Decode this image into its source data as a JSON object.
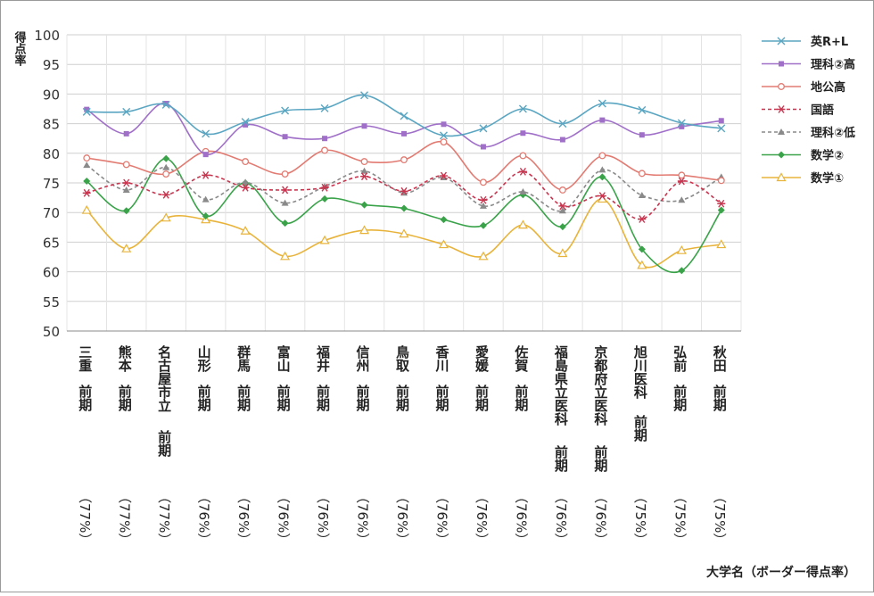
{
  "chart_data": {
    "type": "line",
    "ylabel": "得点率",
    "xlabel": "大学名（ボーダー得点率）",
    "ylim": [
      50,
      100
    ],
    "yticks": [
      50,
      55,
      60,
      65,
      70,
      75,
      80,
      85,
      90,
      95,
      100
    ],
    "grid": true,
    "legend_position": "right",
    "categories": [
      {
        "name": "三重",
        "sub": "前期",
        "pct": "（77%）"
      },
      {
        "name": "熊本",
        "sub": "前期",
        "pct": "（77%）"
      },
      {
        "name": "名古屋市立",
        "sub": "前期",
        "pct": "（77%）"
      },
      {
        "name": "山形",
        "sub": "前期",
        "pct": "（76%）"
      },
      {
        "name": "群馬",
        "sub": "前期",
        "pct": "（76%）"
      },
      {
        "name": "富山",
        "sub": "前期",
        "pct": "（76%）"
      },
      {
        "name": "福井",
        "sub": "前期",
        "pct": "（76%）"
      },
      {
        "name": "信州",
        "sub": "前期",
        "pct": "（76%）"
      },
      {
        "name": "鳥取",
        "sub": "前期",
        "pct": "（76%）"
      },
      {
        "name": "香川",
        "sub": "前期",
        "pct": "（76%）"
      },
      {
        "name": "愛媛",
        "sub": "前期",
        "pct": "（76%）"
      },
      {
        "name": "佐賀",
        "sub": "前期",
        "pct": "（76%）"
      },
      {
        "name": "福島県立医科",
        "sub": "前期",
        "pct": "（76%）"
      },
      {
        "name": "京都府立医科",
        "sub": "前期",
        "pct": "（76%）"
      },
      {
        "name": "旭川医科",
        "sub": "前期",
        "pct": "（75%）"
      },
      {
        "name": "弘前",
        "sub": "前期",
        "pct": "（75%）"
      },
      {
        "name": "秋田",
        "sub": "前期",
        "pct": "（75%）"
      }
    ],
    "series": [
      {
        "name": "英R+L",
        "color": "#5aa6c2",
        "marker": "x",
        "dash": false,
        "values": [
          87.0,
          87.0,
          88.2,
          83.3,
          85.3,
          87.2,
          87.6,
          89.8,
          86.3,
          83.0,
          84.2,
          87.5,
          85.0,
          88.4,
          87.3,
          85.1,
          84.2
        ]
      },
      {
        "name": "理科②高",
        "color": "#a070c9",
        "marker": "square",
        "dash": false,
        "values": [
          87.4,
          83.3,
          88.4,
          79.8,
          84.8,
          82.8,
          82.5,
          84.6,
          83.3,
          84.9,
          81.1,
          83.4,
          82.3,
          85.6,
          83.1,
          84.5,
          85.5
        ]
      },
      {
        "name": "地公高",
        "color": "#e27b72",
        "marker": "circle",
        "dash": false,
        "values": [
          79.2,
          78.1,
          76.5,
          80.3,
          78.6,
          76.5,
          80.5,
          78.6,
          78.9,
          81.9,
          75.1,
          79.6,
          73.8,
          79.6,
          76.6,
          76.3,
          75.4
        ]
      },
      {
        "name": "国語",
        "color": "#c8354f",
        "marker": "asterisk",
        "dash": true,
        "values": [
          73.3,
          75.0,
          73.0,
          76.3,
          74.2,
          73.8,
          74.2,
          76.1,
          73.6,
          76.2,
          72.1,
          76.9,
          71.1,
          72.8,
          68.9,
          75.3,
          71.5
        ]
      },
      {
        "name": "理科②低",
        "color": "#8a8a8a",
        "marker": "triangle-filled",
        "dash": true,
        "values": [
          78.0,
          73.8,
          77.6,
          72.2,
          75.1,
          71.6,
          74.4,
          77.0,
          73.3,
          75.9,
          71.1,
          73.5,
          70.3,
          77.2,
          72.9,
          72.1,
          76.0
        ]
      },
      {
        "name": "数学②",
        "color": "#3aa34a",
        "marker": "diamond",
        "dash": false,
        "values": [
          75.3,
          70.3,
          79.1,
          69.4,
          75.0,
          68.2,
          72.3,
          71.3,
          70.7,
          68.8,
          67.8,
          73.0,
          67.6,
          76.0,
          63.8,
          60.2,
          70.4
        ]
      },
      {
        "name": "数学①",
        "color": "#e8b33a",
        "marker": "triangle-open",
        "dash": false,
        "values": [
          70.4,
          63.9,
          69.1,
          68.8,
          66.9,
          62.6,
          65.3,
          67.0,
          66.4,
          64.6,
          62.6,
          67.9,
          63.1,
          72.3,
          61.1,
          63.6,
          64.6
        ]
      }
    ]
  }
}
